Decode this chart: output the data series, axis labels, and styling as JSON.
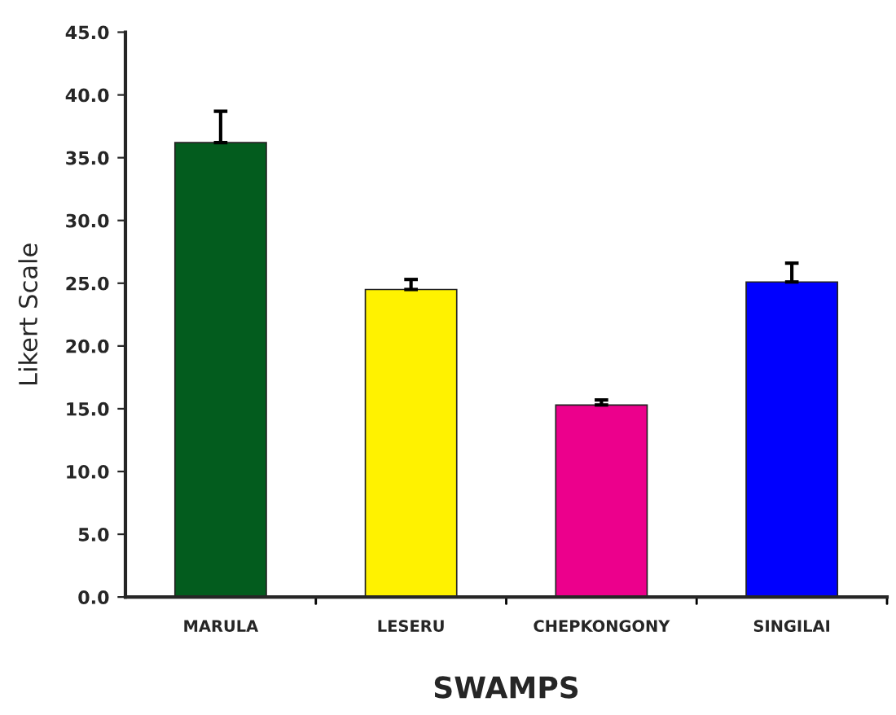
{
  "chart_data": {
    "type": "bar",
    "xlabel": "SWAMPS",
    "ylabel": "Likert Scale",
    "categories": [
      "MARULA",
      "LESERU",
      "CHEPKONGONY",
      "SINGILAI"
    ],
    "values": [
      36.2,
      24.5,
      15.3,
      25.1
    ],
    "errors": [
      2.5,
      0.8,
      0.4,
      1.5
    ],
    "colors": [
      "#035c1e",
      "#fff200",
      "#ec008c",
      "#0000ff"
    ],
    "ylim": [
      0,
      45
    ],
    "yticks": [
      {
        "value": 0,
        "label": "0.0"
      },
      {
        "value": 5,
        "label": "5.0"
      },
      {
        "value": 10,
        "label": "10.0"
      },
      {
        "value": 15,
        "label": "15.0"
      },
      {
        "value": 20,
        "label": "20.0"
      },
      {
        "value": 25,
        "label": "25.0"
      },
      {
        "value": 30,
        "label": "30.0"
      },
      {
        "value": 35,
        "label": "35.0"
      },
      {
        "value": 40,
        "label": "40.0"
      },
      {
        "value": 45,
        "label": "45.0"
      }
    ],
    "grid": false,
    "legend": false
  }
}
